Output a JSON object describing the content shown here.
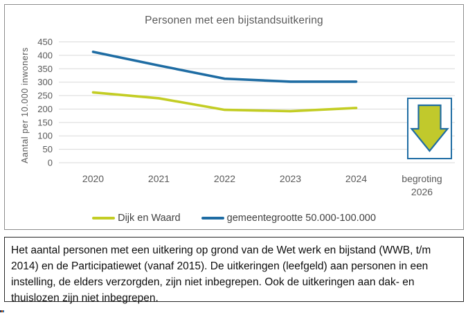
{
  "chart_data": {
    "type": "line",
    "title": "Personen met een bijstandsuitkering",
    "xlabel": "",
    "ylabel": "Aantal per 10.000 inwoners",
    "categories": [
      "2020",
      "2021",
      "2022",
      "2023",
      "2024",
      "begroting\n2026"
    ],
    "series": [
      {
        "name": "Dijk en Waard",
        "color": "#c3cd24",
        "values": [
          262,
          240,
          197,
          192,
          204
        ]
      },
      {
        "name": "gemeentegrootte 50.000-100.000",
        "color": "#1e6ca3",
        "values": [
          413,
          362,
          313,
          302,
          302
        ]
      }
    ],
    "ylim": [
      0,
      450
    ],
    "ytick_step": 50,
    "grid": true,
    "legend_position": "bottom"
  },
  "icons": {
    "down_arrow": {
      "name": "down-arrow-icon",
      "fill": "#c1c92c",
      "border": "#1e6ca3"
    },
    "artifact_colors": [
      "#1f3864",
      "#c55a11",
      "#2e75b6"
    ]
  },
  "description": {
    "text": "Het aantal personen met een uitkering op grond van de Wet werk en bijstand (WWB, t/m 2014) en de Participatiewet (vanaf 2015). De uitkeringen (leefgeld) aan personen in een instelling, de elders verzorgden, zijn niet inbegrepen. Ook de uitkeringen aan dak- en thuislozen zijn niet inbegrepen."
  }
}
